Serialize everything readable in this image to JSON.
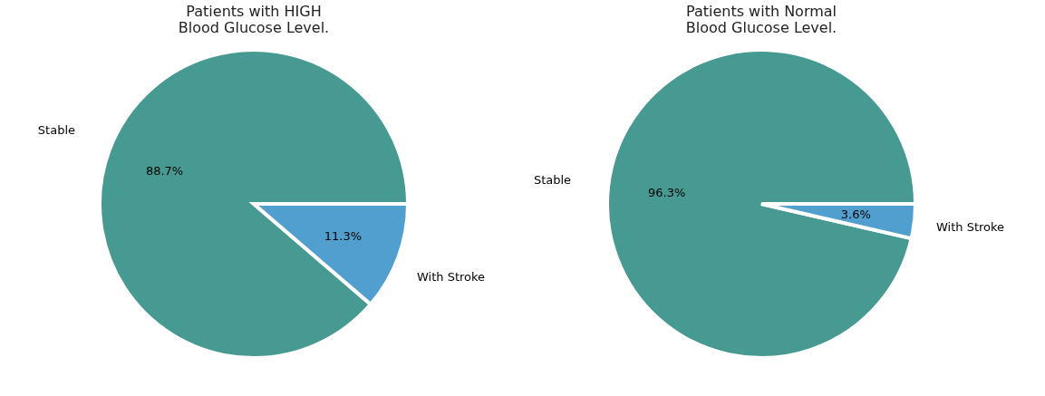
{
  "chart_data": [
    {
      "type": "pie",
      "title": "Patients with HIGH\nBlood Glucose Level.",
      "categories": [
        "Stable",
        "With Stroke"
      ],
      "values": [
        88.7,
        11.3
      ],
      "colors": [
        "#469a91",
        "#509fcf"
      ],
      "value_labels": [
        "88.7%",
        "11.3%"
      ],
      "legend": false
    },
    {
      "type": "pie",
      "title": "Patients with Normal\nBlood Glucose Level.",
      "categories": [
        "Stable",
        "With Stroke"
      ],
      "values": [
        96.3,
        3.6
      ],
      "colors": [
        "#469a91",
        "#509fcf"
      ],
      "value_labels": [
        "96.3%",
        "3.6%"
      ],
      "legend": false
    }
  ]
}
